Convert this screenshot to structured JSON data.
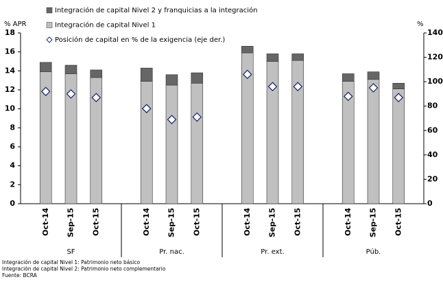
{
  "chart_data": {
    "type": "bar",
    "stacked": true,
    "y_label": "% APR",
    "y2_label": "%",
    "categories": [
      "Oct-14",
      "Sep-15",
      "Oct-15",
      "Oct-14",
      "Sep-15",
      "Oct-15",
      "Oct-14",
      "Sep-15",
      "Oct-15",
      "Oct-14",
      "Sep-15",
      "Oct-15"
    ],
    "groups": [
      "SF",
      "Pr. nac.",
      "Pr. ext.",
      "Púb."
    ],
    "series": [
      {
        "name": "Integración de capital Nivel 1",
        "color": "#c0c0c0",
        "values": [
          13.9,
          13.7,
          13.3,
          12.9,
          12.5,
          12.7,
          15.9,
          15.0,
          15.1,
          12.9,
          13.1,
          12.1
        ]
      },
      {
        "name": "Integración de capital Nivel 2 y franquicias a la integración",
        "color": "#666666",
        "values": [
          1.0,
          0.9,
          0.8,
          1.4,
          1.1,
          1.1,
          0.7,
          0.8,
          0.7,
          0.8,
          0.8,
          0.6
        ]
      },
      {
        "name": "Posición de capital en % de la exigencia (eje der.)",
        "color": "#1f2d6e",
        "marker": "diamond",
        "axis": "y2",
        "values": [
          92,
          90,
          87,
          78,
          69,
          71,
          106,
          96,
          96,
          88,
          95,
          87
        ]
      }
    ],
    "ylim": [
      0,
      18
    ],
    "yticks": [
      0,
      2,
      4,
      6,
      8,
      10,
      12,
      14,
      16,
      18
    ],
    "y2lim": [
      0,
      140
    ],
    "y2ticks": [
      0,
      20,
      40,
      60,
      80,
      100,
      120,
      140
    ],
    "notes": [
      "Integración de capital Nivel 1: Patrimonio neto básico",
      "Integración de capital Nivel 2: Patrimonio neto complementario",
      "Fuente: BCRA"
    ]
  }
}
